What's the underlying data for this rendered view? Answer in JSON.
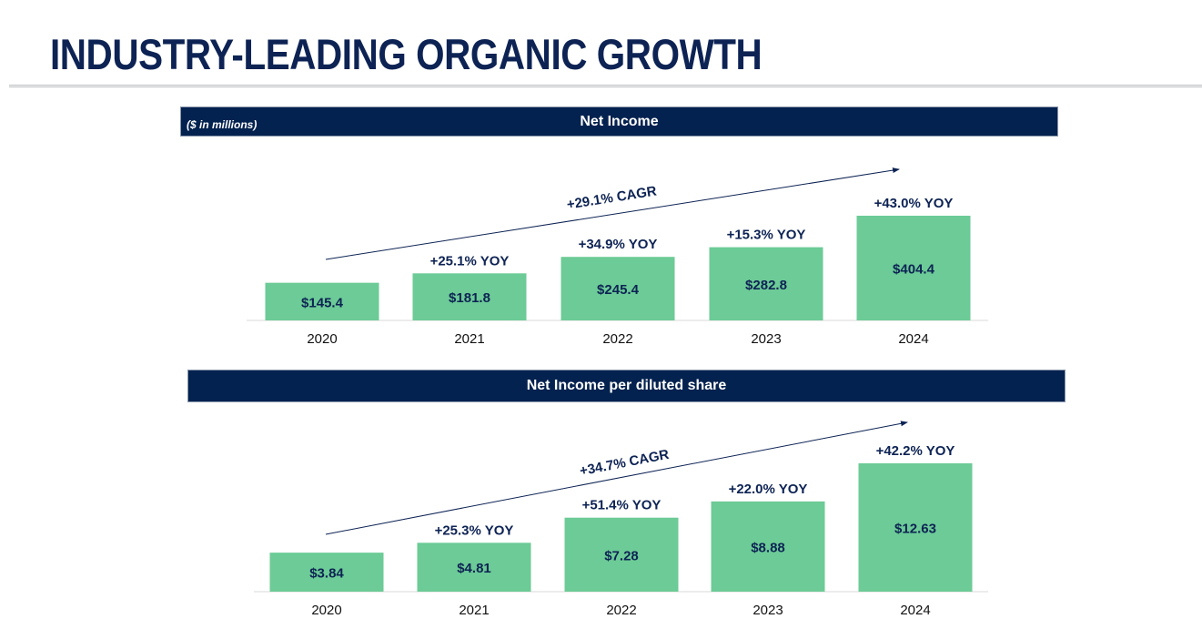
{
  "page": {
    "title": "INDUSTRY-LEADING ORGANIC GROWTH"
  },
  "colors": {
    "bar": "#6ccb96",
    "banner": "#04224f",
    "text": "#0d2354",
    "arrow": "#0d2354"
  },
  "charts": {
    "net_income": {
      "banner_title": "Net Income",
      "units_note": "($ in millions)"
    },
    "eps": {
      "banner_title": "Net Income per diluted share"
    }
  },
  "chart_data": [
    {
      "type": "bar",
      "title": "Net Income",
      "units": "($ in millions)",
      "categories": [
        "2020",
        "2021",
        "2022",
        "2023",
        "2024"
      ],
      "values": [
        145.4,
        181.8,
        245.4,
        282.8,
        404.4
      ],
      "value_labels": [
        "$145.4",
        "$181.8",
        "$245.4",
        "$282.8",
        "$404.4"
      ],
      "yoy_labels": [
        "",
        "+25.1% YOY",
        "+34.9% YOY",
        "+15.3% YOY",
        "+43.0% YOY"
      ],
      "trend_label": "+29.1% CAGR",
      "ylim": [
        0,
        404.4
      ],
      "xlabel": "",
      "ylabel": ""
    },
    {
      "type": "bar",
      "title": "Net Income per diluted share",
      "categories": [
        "2020",
        "2021",
        "2022",
        "2023",
        "2024"
      ],
      "values": [
        3.84,
        4.81,
        7.28,
        8.88,
        12.63
      ],
      "value_labels": [
        "$3.84",
        "$4.81",
        "$7.28",
        "$8.88",
        "$12.63"
      ],
      "yoy_labels": [
        "",
        "+25.3% YOY",
        "+51.4% YOY",
        "+22.0% YOY",
        "+42.2% YOY"
      ],
      "trend_label": "+34.7% CAGR",
      "ylim": [
        0,
        12.63
      ],
      "xlabel": "",
      "ylabel": ""
    }
  ]
}
